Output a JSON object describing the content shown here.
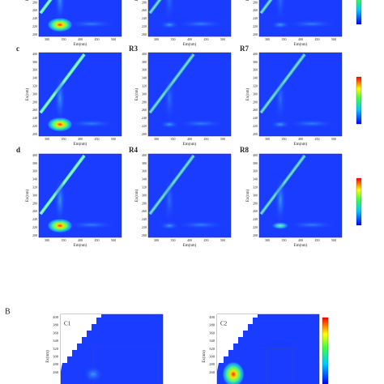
{
  "eem_grid": {
    "y_axis_label": "Ex(nm)",
    "x_axis_label": "Em(nm)",
    "y_ticks": [
      "400",
      "380",
      "360",
      "340",
      "320",
      "300",
      "280",
      "260",
      "240",
      "220",
      "200"
    ],
    "x_ticks": [
      "300",
      "350",
      "400",
      "450",
      "500"
    ],
    "row_labels": [
      "c",
      "d"
    ],
    "panel_labels": [
      [
        "R3",
        "R7"
      ],
      [
        "R4",
        "R8"
      ]
    ]
  },
  "section_b": {
    "label": "B",
    "y_axis_label": "Ex(nm)",
    "y_ticks": [
      "400",
      "380",
      "360",
      "340",
      "320",
      "300",
      "280",
      "260"
    ],
    "panel_labels": [
      "C1",
      "C2"
    ]
  }
}
